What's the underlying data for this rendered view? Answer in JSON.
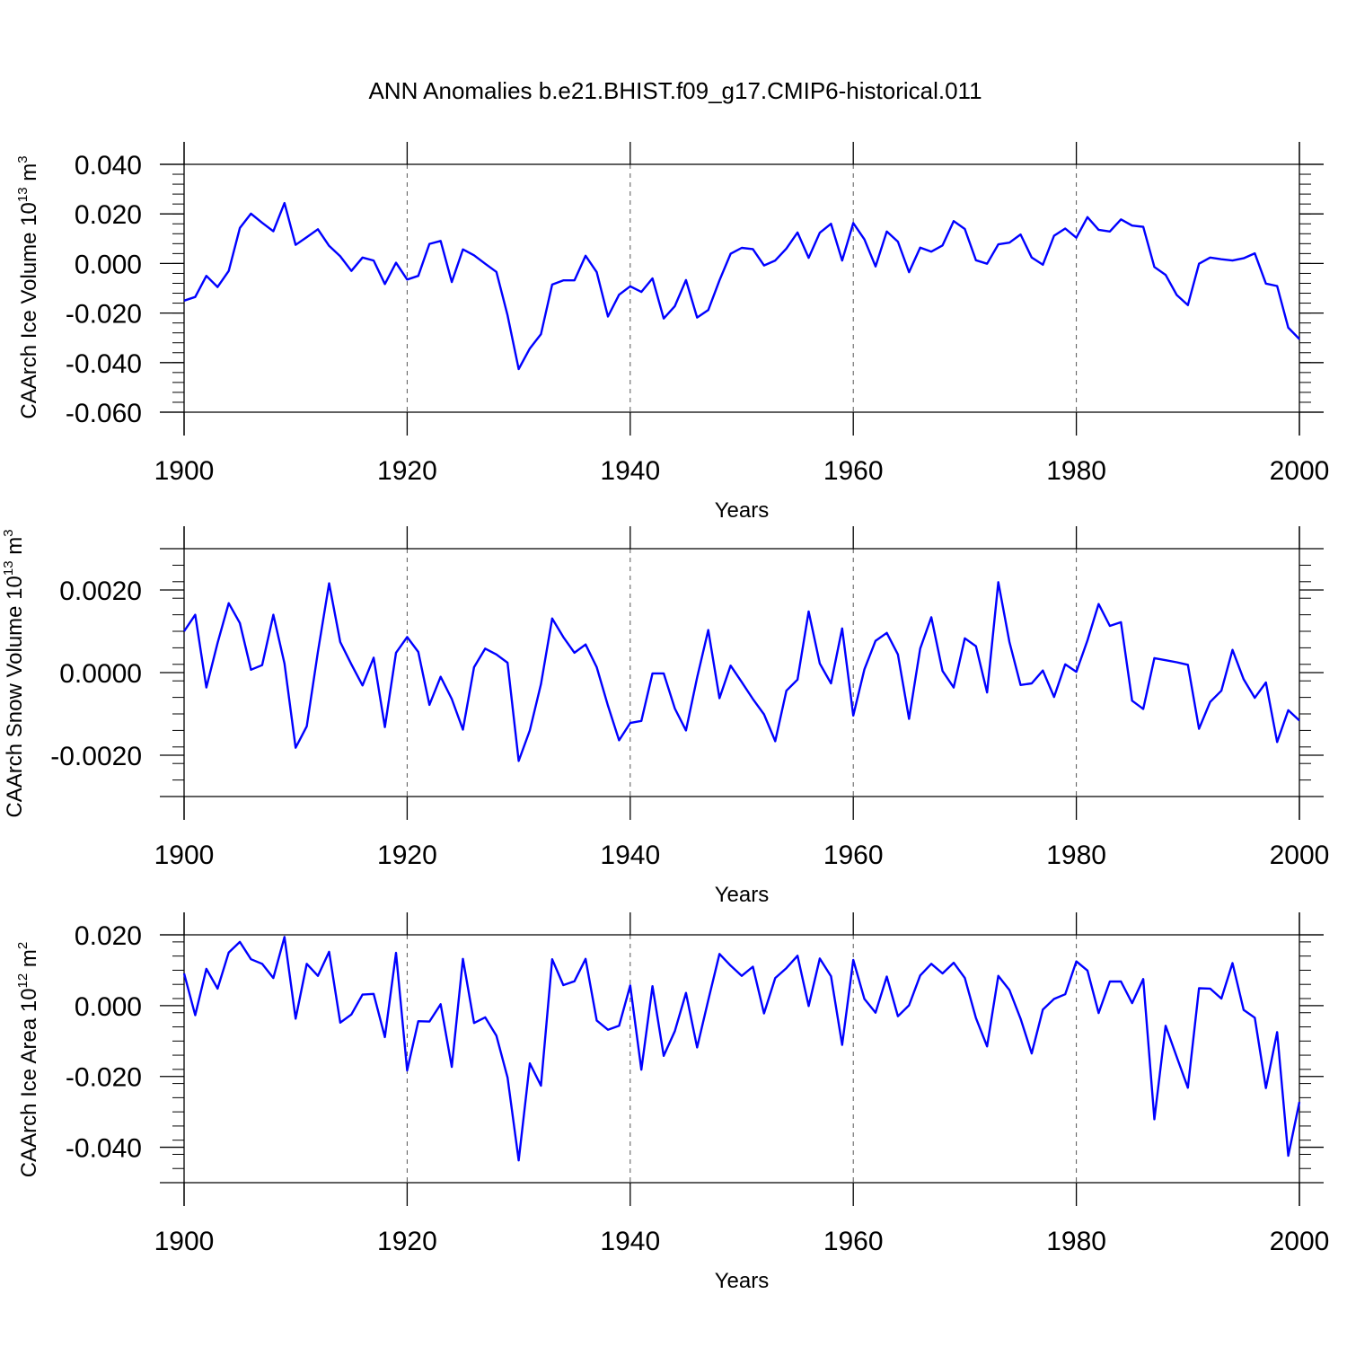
{
  "title": "ANN Anomalies b.e21.BHIST.f09_g17.CMIP6-historical.011",
  "colors": {
    "series": "#0000ff",
    "axis": "#000000",
    "grid": "#555555"
  },
  "chart_data": [
    {
      "type": "line",
      "ylabel": "CAArch Ice Volume 10",
      "ylabel_exp": "13",
      "ylabel_unit": " m",
      "ylabel_unit_exp": "3",
      "xlabel": "Years",
      "xlim": [
        1900,
        2000
      ],
      "ylim": [
        -0.06,
        0.04
      ],
      "yticks": [
        -0.06,
        -0.04,
        -0.02,
        0.0,
        0.02,
        0.04
      ],
      "ytick_labels": [
        "-0.060",
        "-0.040",
        "-0.020",
        "0.000",
        "0.020",
        "0.040"
      ],
      "xticks": [
        1900,
        1920,
        1940,
        1960,
        1980,
        2000
      ],
      "xtick_labels": [
        "1900",
        "1920",
        "1940",
        "1960",
        "1980",
        "2000"
      ],
      "x_start": 1900,
      "values": [
        -0.015,
        -0.0135,
        -0.005,
        -0.0095,
        -0.003,
        0.0143,
        0.0201,
        0.0164,
        0.013,
        0.0244,
        0.0075,
        0.0106,
        0.0138,
        0.0071,
        0.0029,
        -0.003,
        0.0024,
        0.0012,
        -0.0083,
        0.0003,
        -0.0065,
        -0.005,
        0.0079,
        0.0091,
        -0.0075,
        0.0057,
        0.0033,
        -0.0001,
        -0.0034,
        -0.0209,
        -0.0426,
        -0.0343,
        -0.0285,
        -0.0085,
        -0.0068,
        -0.0068,
        0.0031,
        -0.0035,
        -0.0214,
        -0.0126,
        -0.0092,
        -0.0115,
        -0.006,
        -0.0222,
        -0.0172,
        -0.0067,
        -0.0218,
        -0.0188,
        -0.0068,
        0.0039,
        0.0063,
        0.0058,
        -0.0008,
        0.0012,
        0.006,
        0.0125,
        0.0023,
        0.0124,
        0.016,
        0.0012,
        0.0163,
        0.0097,
        -0.0012,
        0.0129,
        0.0088,
        -0.0035,
        0.0064,
        0.0048,
        0.0073,
        0.0171,
        0.0139,
        0.0013,
        -0.0001,
        0.0077,
        0.0084,
        0.0117,
        0.0024,
        -0.0005,
        0.0112,
        0.0141,
        0.0104,
        0.0187,
        0.0136,
        0.0129,
        0.0178,
        0.0153,
        0.0148,
        -0.0014,
        -0.0046,
        -0.0127,
        -0.0168,
        -0.0001,
        0.0024,
        0.0017,
        0.0012,
        0.0021,
        0.0041,
        -0.0081,
        -0.0091,
        -0.0259,
        -0.0305
      ]
    },
    {
      "type": "line",
      "ylabel": "CAArch Snow Volume 10",
      "ylabel_exp": "13",
      "ylabel_unit": " m",
      "ylabel_unit_exp": "3",
      "xlabel": "Years",
      "xlim": [
        1900,
        2000
      ],
      "ylim": [
        -0.003,
        0.003
      ],
      "yticks": [
        -0.002,
        0.0,
        0.002
      ],
      "ytick_labels": [
        "-0.0020",
        "0.0000",
        "0.0020"
      ],
      "xticks": [
        1900,
        1920,
        1940,
        1960,
        1980,
        2000
      ],
      "xtick_labels": [
        "1900",
        "1920",
        "1940",
        "1960",
        "1980",
        "2000"
      ],
      "x_start": 1900,
      "values": [
        0.001,
        0.0014,
        -0.00036,
        0.00072,
        0.00168,
        0.0012,
        7e-05,
        0.00018,
        0.0014,
        0.00022,
        -0.00182,
        -0.0013,
        0.0005,
        0.00216,
        0.00074,
        0.0002,
        -0.00031,
        0.00036,
        -0.00132,
        0.00048,
        0.00086,
        0.0005,
        -0.00078,
        -0.0001,
        -0.00064,
        -0.00138,
        0.00013,
        0.00058,
        0.00044,
        0.00024,
        -0.00214,
        -0.0014,
        -0.00028,
        0.00131,
        0.00086,
        0.00048,
        0.00068,
        0.00013,
        -0.0008,
        -0.00164,
        -0.00122,
        -0.00117,
        -2e-05,
        -2e-05,
        -0.00087,
        -0.0014,
        -0.00012,
        0.00103,
        -0.00062,
        0.00017,
        -0.00023,
        -0.00064,
        -0.00101,
        -0.00166,
        -0.00044,
        -0.00017,
        0.00148,
        0.00022,
        -0.00026,
        0.00107,
        -0.00104,
        8e-05,
        0.00077,
        0.00096,
        0.00044,
        -0.00112,
        0.00058,
        0.00134,
        4e-05,
        -0.00036,
        0.00083,
        0.00064,
        -0.00048,
        0.00219,
        0.00074,
        -0.0003,
        -0.00026,
        5e-05,
        -0.00059,
        0.0002,
        2e-05,
        0.00078,
        0.00166,
        0.00113,
        0.00122,
        -0.00068,
        -0.00088,
        0.00035,
        0.0003,
        0.00025,
        0.00019,
        -0.00136,
        -0.00071,
        -0.00044,
        0.00055,
        -0.00016,
        -0.00061,
        -0.00024,
        -0.00168,
        -0.00091,
        -0.00116
      ]
    },
    {
      "type": "line",
      "ylabel": "CAArch Ice Area 10",
      "ylabel_exp": "12",
      "ylabel_unit": " m",
      "ylabel_unit_exp": "2",
      "xlabel": "Years",
      "xlim": [
        1900,
        2000
      ],
      "ylim": [
        -0.05,
        0.02
      ],
      "yticks": [
        -0.04,
        -0.02,
        0.0,
        0.02
      ],
      "ytick_labels": [
        "-0.040",
        "-0.020",
        "0.000",
        "0.020"
      ],
      "xticks": [
        1900,
        1920,
        1940,
        1960,
        1980,
        2000
      ],
      "xtick_labels": [
        "1900",
        "1920",
        "1940",
        "1960",
        "1980",
        "2000"
      ],
      "x_start": 1900,
      "values": [
        0.0091,
        -0.0027,
        0.0104,
        0.0048,
        0.015,
        0.018,
        0.0131,
        0.0118,
        0.0078,
        0.0194,
        -0.0037,
        0.0118,
        0.0084,
        0.0152,
        -0.0048,
        -0.0025,
        0.0031,
        0.0033,
        -0.0089,
        0.0149,
        -0.0183,
        -0.0044,
        -0.0045,
        0.0004,
        -0.0173,
        0.0132,
        -0.0049,
        -0.0033,
        -0.0085,
        -0.0203,
        -0.0437,
        -0.0163,
        -0.0226,
        0.0131,
        0.0058,
        0.0069,
        0.0132,
        -0.0042,
        -0.0068,
        -0.0057,
        0.0057,
        -0.0181,
        0.0055,
        -0.0142,
        -0.0072,
        0.0036,
        -0.0118,
        0.0015,
        0.0146,
        0.0113,
        0.0084,
        0.011,
        -0.0022,
        0.0078,
        0.0106,
        0.0141,
        -0.0001,
        0.0133,
        0.0083,
        -0.0111,
        0.0129,
        0.0019,
        -0.002,
        0.0082,
        -0.003,
        0.0001,
        0.0085,
        0.0118,
        0.0091,
        0.0121,
        0.0078,
        -0.0035,
        -0.0115,
        0.0084,
        0.0044,
        -0.0037,
        -0.0135,
        -0.0011,
        0.0019,
        0.0032,
        0.0125,
        0.0099,
        -0.0021,
        0.0068,
        0.0068,
        0.0007,
        0.0075,
        -0.0321,
        -0.0057,
        -0.0145,
        -0.0232,
        0.0049,
        0.0048,
        0.002,
        0.012,
        -0.0012,
        -0.0034,
        -0.0233,
        -0.0075,
        -0.0424,
        -0.0272
      ]
    }
  ]
}
